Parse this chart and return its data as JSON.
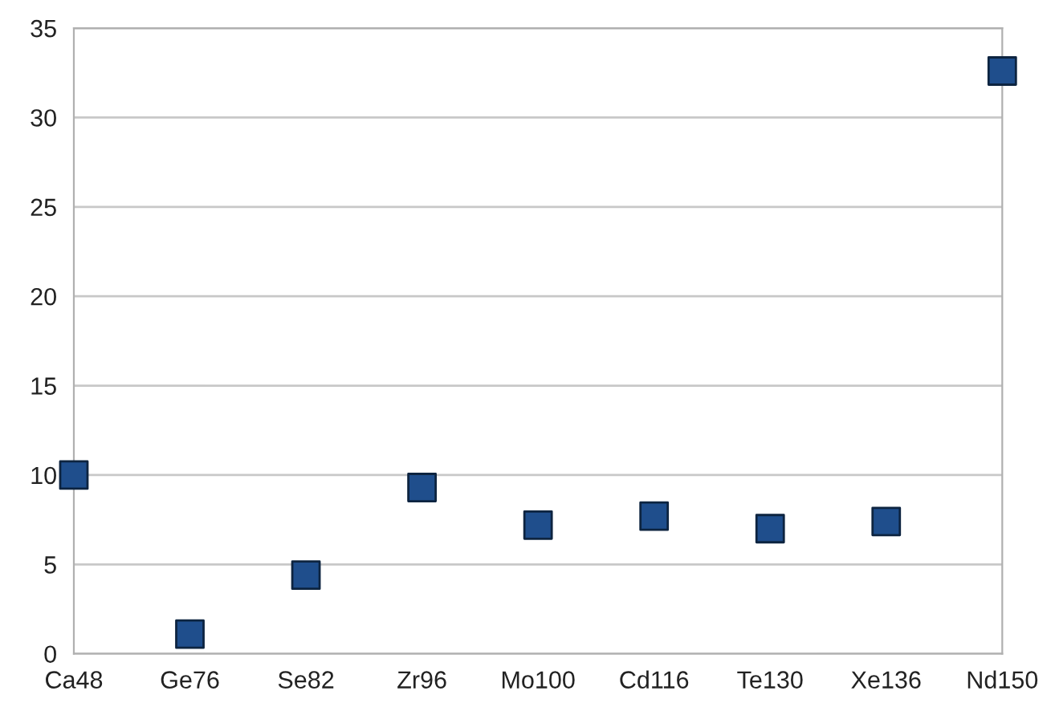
{
  "chart_data": {
    "type": "scatter",
    "categories": [
      "Ca48",
      "Ge76",
      "Se82",
      "Zr96",
      "Mo100",
      "Cd116",
      "Te130",
      "Xe136",
      "Nd150"
    ],
    "series": [
      {
        "color": "#1f4e8c",
        "values": [
          10.0,
          1.1,
          4.4,
          9.3,
          7.2,
          7.7,
          7.0,
          7.4,
          32.6
        ]
      }
    ],
    "ylim": [
      0,
      35
    ],
    "yticks": [
      0,
      5,
      10,
      15,
      20,
      25,
      30,
      35
    ],
    "grid": "y",
    "marker": "square",
    "legend": false
  }
}
